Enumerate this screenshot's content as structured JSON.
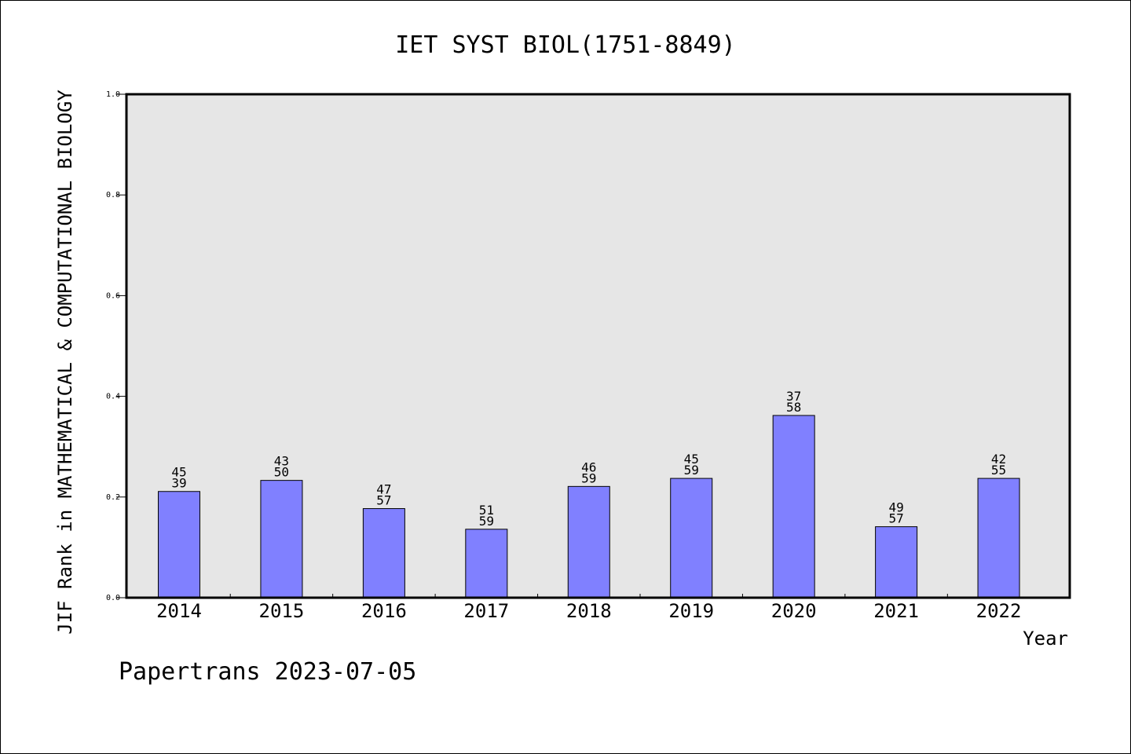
{
  "chart_data": {
    "type": "bar",
    "title": "IET SYST BIOL(1751-8849)",
    "xlabel": "Year",
    "ylabel": "JIF Rank in MATHEMATICAL & COMPUTATIONAL BIOLOGY",
    "categories": [
      "2014",
      "2015",
      "2016",
      "2017",
      "2018",
      "2019",
      "2020",
      "2021",
      "2022"
    ],
    "values": [
      0.211,
      0.233,
      0.177,
      0.136,
      0.221,
      0.237,
      0.362,
      0.141,
      0.237
    ],
    "bar_labels": [
      {
        "rank": "45",
        "total": "39"
      },
      {
        "rank": "43",
        "total": "50"
      },
      {
        "rank": "47",
        "total": "57"
      },
      {
        "rank": "51",
        "total": "59"
      },
      {
        "rank": "46",
        "total": "59"
      },
      {
        "rank": "45",
        "total": "59"
      },
      {
        "rank": "37",
        "total": "58"
      },
      {
        "rank": "49",
        "total": "57"
      },
      {
        "rank": "42",
        "total": "55"
      }
    ],
    "ylim": [
      0,
      1
    ],
    "yticks": [
      "0.0",
      "0.2",
      "0.4",
      "0.6",
      "0.8",
      "1.0"
    ],
    "grid": false,
    "colors": {
      "bar": "#8080ff",
      "plot_bg": "#e6e6e6",
      "axes": "#000000"
    }
  },
  "footer": "Papertrans 2023-07-05"
}
